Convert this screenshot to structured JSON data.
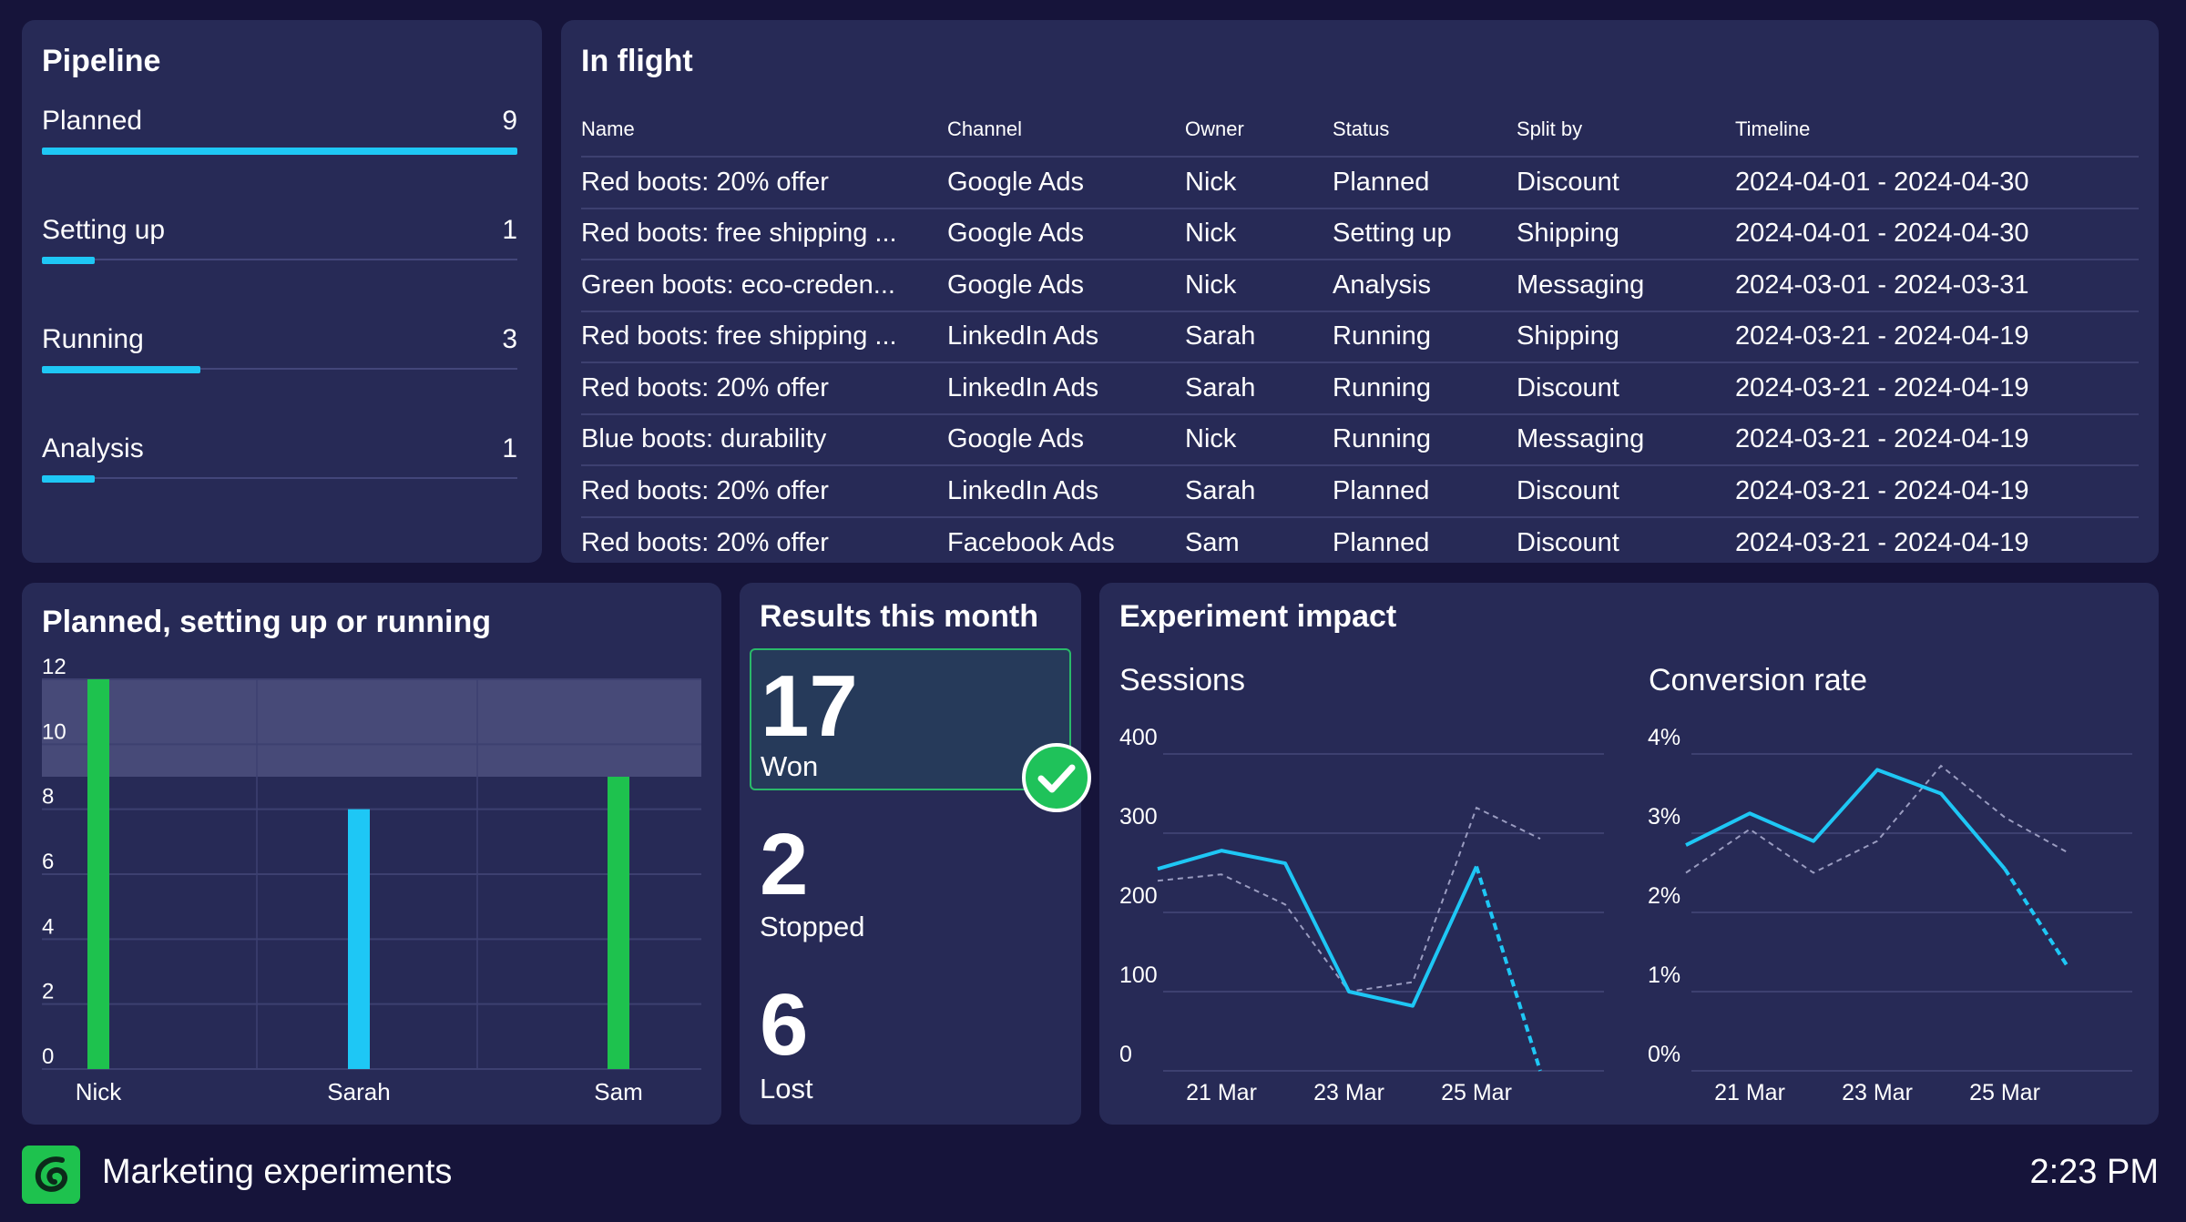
{
  "pipeline": {
    "title": "Pipeline",
    "max": 9,
    "items": [
      {
        "label": "Planned",
        "count": 9
      },
      {
        "label": "Setting up",
        "count": 1
      },
      {
        "label": "Running",
        "count": 3
      },
      {
        "label": "Analysis",
        "count": 1
      }
    ]
  },
  "inflight": {
    "title": "In flight",
    "columns": [
      "Name",
      "Channel",
      "Owner",
      "Status",
      "Split by",
      "Timeline"
    ],
    "rows": [
      [
        "Red boots: 20% offer",
        "Google Ads",
        "Nick",
        "Planned",
        "Discount",
        "2024-04-01 - 2024-04-30"
      ],
      [
        "Red boots: free shipping ...",
        "Google Ads",
        "Nick",
        "Setting up",
        "Shipping",
        "2024-04-01 - 2024-04-30"
      ],
      [
        "Green boots: eco-creden...",
        "Google Ads",
        "Nick",
        "Analysis",
        "Messaging",
        "2024-03-01 - 2024-03-31"
      ],
      [
        "Red boots: free shipping ...",
        "LinkedIn Ads",
        "Sarah",
        "Running",
        "Shipping",
        "2024-03-21 - 2024-04-19"
      ],
      [
        "Red boots: 20% offer",
        "LinkedIn Ads",
        "Sarah",
        "Running",
        "Discount",
        "2024-03-21 - 2024-04-19"
      ],
      [
        "Blue boots: durability",
        "Google Ads",
        "Nick",
        "Running",
        "Messaging",
        "2024-03-21 - 2024-04-19"
      ],
      [
        "Red boots: 20% offer",
        "LinkedIn Ads",
        "Sarah",
        "Planned",
        "Discount",
        "2024-03-21 - 2024-04-19"
      ],
      [
        "Red boots: 20% offer",
        "Facebook Ads",
        "Sam",
        "Planned",
        "Discount",
        "2024-03-21 - 2024-04-19"
      ]
    ]
  },
  "planned": {
    "title": "Planned, setting up or running"
  },
  "results": {
    "title": "Results this month",
    "won": {
      "value": "17",
      "label": "Won"
    },
    "stopped": {
      "value": "2",
      "label": "Stopped"
    },
    "lost": {
      "value": "6",
      "label": "Lost"
    }
  },
  "impact": {
    "title": "Experiment impact",
    "sessions_title": "Sessions",
    "conversion_title": "Conversion rate"
  },
  "footer": {
    "app_title": "Marketing experiments",
    "time": "2:23 PM"
  },
  "colors": {
    "accent_cyan": "#1ec7f5",
    "accent_green": "#1ec24e",
    "panel": "#272a56",
    "background": "#16143a"
  },
  "chart_data": [
    {
      "type": "bar",
      "title": "Planned, setting up or running",
      "categories": [
        "Nick",
        "Sarah",
        "Sam"
      ],
      "values": [
        12,
        8,
        9
      ],
      "colors": [
        "#1ec24e",
        "#1ec7f5",
        "#1ec24e"
      ],
      "ylim": [
        0,
        12
      ],
      "yticks": [
        0,
        2,
        4,
        6,
        8,
        10,
        12
      ],
      "band": [
        9,
        12
      ],
      "grid": true
    },
    {
      "type": "line",
      "title": "Sessions",
      "x": [
        "20 Mar",
        "21 Mar",
        "22 Mar",
        "23 Mar",
        "24 Mar",
        "25 Mar",
        "26 Mar"
      ],
      "xticks": [
        "21 Mar",
        "23 Mar",
        "25 Mar"
      ],
      "ylim": [
        0,
        400
      ],
      "yticks": [
        "0",
        "100",
        "200",
        "300",
        "400"
      ],
      "series": [
        {
          "values": [
            255,
            278,
            262,
            100,
            82,
            258,
            0
          ],
          "style": "solid",
          "dashed_from": 5
        },
        {
          "values": [
            240,
            248,
            210,
            100,
            112,
            332,
            293
          ],
          "style": "dashed"
        }
      ],
      "grid": true
    },
    {
      "type": "line",
      "title": "Conversion rate",
      "x": [
        "20 Mar",
        "21 Mar",
        "22 Mar",
        "23 Mar",
        "24 Mar",
        "25 Mar",
        "26 Mar"
      ],
      "xticks": [
        "21 Mar",
        "23 Mar",
        "25 Mar"
      ],
      "ylim": [
        0,
        4
      ],
      "yticks": [
        "0%",
        "1%",
        "2%",
        "3%",
        "4%"
      ],
      "series": [
        {
          "values": [
            2.85,
            3.25,
            2.9,
            3.8,
            3.5,
            2.55,
            1.3
          ],
          "style": "solid",
          "dashed_from": 5
        },
        {
          "values": [
            2.5,
            3.05,
            2.5,
            2.9,
            3.85,
            3.2,
            2.75
          ],
          "style": "dashed"
        }
      ],
      "grid": true
    }
  ]
}
